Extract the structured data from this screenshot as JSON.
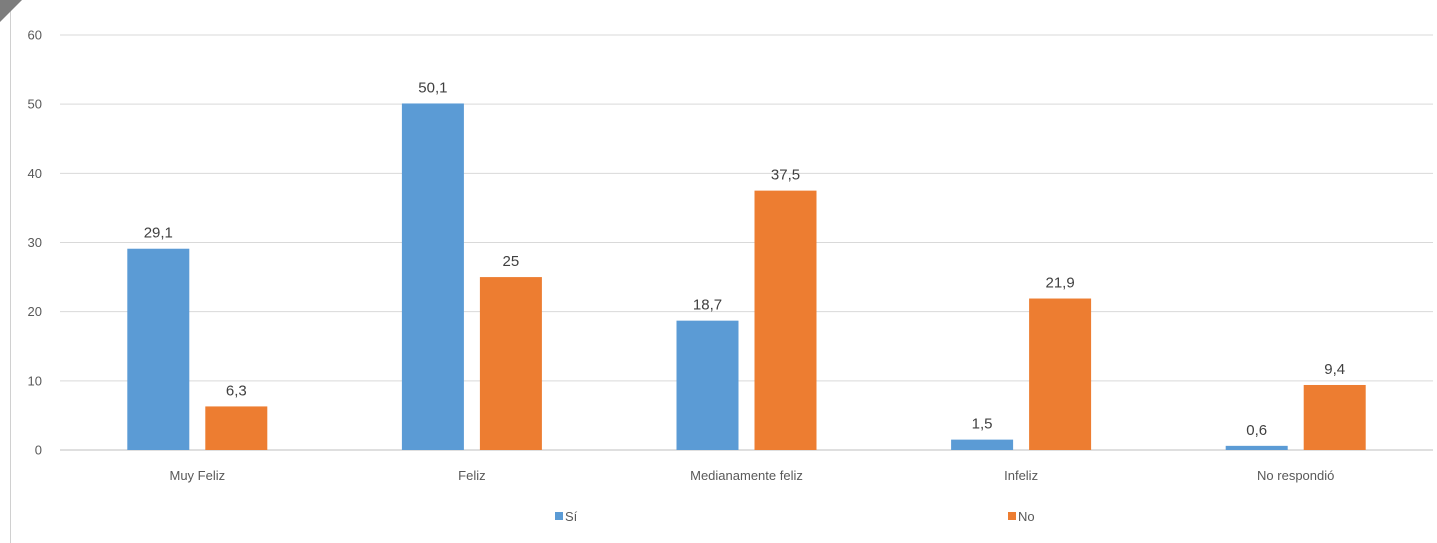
{
  "chart_data": {
    "type": "bar",
    "categories": [
      "Muy Feliz",
      "Feliz",
      "Medianamente feliz",
      "Infeliz",
      "No respondió"
    ],
    "series": [
      {
        "name": "Sí",
        "values": [
          29.1,
          50.1,
          18.7,
          1.5,
          0.6
        ],
        "labels": [
          "29,1",
          "50,1",
          "18,7",
          "1,5",
          "0,6"
        ],
        "color": "#5B9BD5"
      },
      {
        "name": "No",
        "values": [
          6.3,
          25,
          37.5,
          21.9,
          9.4
        ],
        "labels": [
          "6,3",
          "25",
          "37,5",
          "21,9",
          "9,4"
        ],
        "color": "#ED7D31"
      }
    ],
    "yticks": [
      "0",
      "10",
      "20",
      "30",
      "40",
      "50",
      "60"
    ],
    "ylim": [
      0,
      60
    ],
    "grid": true,
    "legend": "bottom-center"
  }
}
